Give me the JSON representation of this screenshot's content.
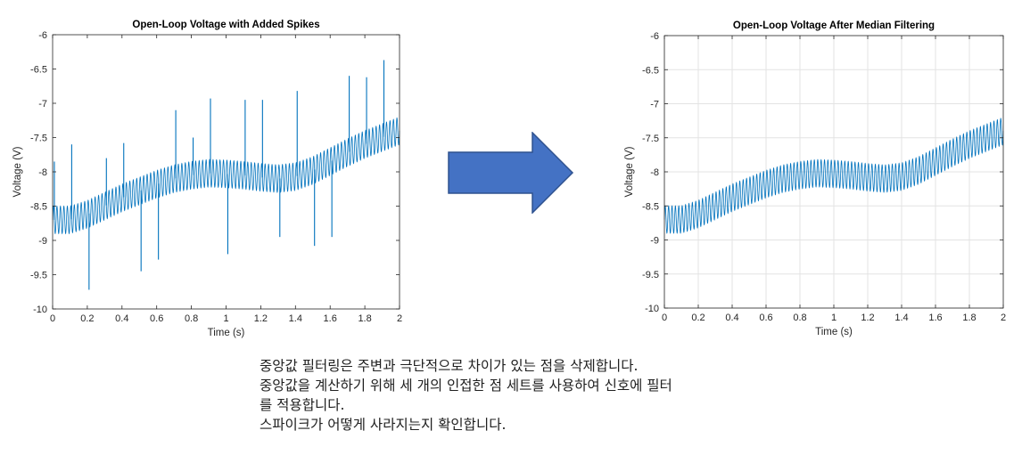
{
  "chart_data": [
    {
      "type": "line",
      "title": "Open-Loop Voltage with Added Spikes",
      "xlabel": "Time (s)",
      "ylabel": "Voltage (V)",
      "xlim": [
        0,
        2
      ],
      "ylim": [
        -10,
        -6
      ],
      "xticks": [
        "0",
        "0.2",
        "0.4",
        "0.6",
        "0.8",
        "1",
        "1.2",
        "1.4",
        "1.6",
        "1.8",
        "2"
      ],
      "yticks": [
        "-6",
        "-6.5",
        "-7",
        "-7.5",
        "-8",
        "-8.5",
        "-9",
        "-9.5",
        "-10"
      ],
      "grid": false,
      "line_color": "#0072BD",
      "trend": {
        "x": [
          0,
          0.1,
          0.2,
          0.3,
          0.4,
          0.5,
          0.6,
          0.7,
          0.8,
          0.9,
          1.0,
          1.1,
          1.2,
          1.3,
          1.4,
          1.5,
          1.6,
          1.7,
          1.8,
          1.9,
          2.0
        ],
        "y": [
          -8.7,
          -8.7,
          -8.62,
          -8.5,
          -8.38,
          -8.28,
          -8.18,
          -8.1,
          -8.05,
          -8.02,
          -8.03,
          -8.05,
          -8.08,
          -8.1,
          -8.07,
          -7.98,
          -7.85,
          -7.72,
          -7.6,
          -7.5,
          -7.4
        ]
      },
      "oscillation_amplitude": 0.2,
      "oscillation_period": 0.02,
      "spikes": [
        {
          "x": 0.01,
          "y": -7.85
        },
        {
          "x": 0.11,
          "y": -7.6
        },
        {
          "x": 0.21,
          "y": -9.72
        },
        {
          "x": 0.31,
          "y": -7.8
        },
        {
          "x": 0.41,
          "y": -7.58
        },
        {
          "x": 0.51,
          "y": -9.45
        },
        {
          "x": 0.61,
          "y": -9.28
        },
        {
          "x": 0.71,
          "y": -7.1
        },
        {
          "x": 0.81,
          "y": -7.5
        },
        {
          "x": 0.91,
          "y": -6.93
        },
        {
          "x": 1.01,
          "y": -9.2
        },
        {
          "x": 1.11,
          "y": -6.95
        },
        {
          "x": 1.21,
          "y": -6.95
        },
        {
          "x": 1.31,
          "y": -8.95
        },
        {
          "x": 1.41,
          "y": -6.82
        },
        {
          "x": 1.51,
          "y": -9.08
        },
        {
          "x": 1.61,
          "y": -8.95
        },
        {
          "x": 1.71,
          "y": -6.6
        },
        {
          "x": 1.81,
          "y": -6.62
        },
        {
          "x": 1.91,
          "y": -6.37
        }
      ]
    },
    {
      "type": "line",
      "title": "Open-Loop Voltage After Median Filtering",
      "xlabel": "Time (s)",
      "ylabel": "Voltage (V)",
      "xlim": [
        0,
        2
      ],
      "ylim": [
        -10,
        -6
      ],
      "xticks": [
        "0",
        "0.2",
        "0.4",
        "0.6",
        "0.8",
        "1",
        "1.2",
        "1.4",
        "1.6",
        "1.8",
        "2"
      ],
      "yticks": [
        "-6",
        "-6.5",
        "-7",
        "-7.5",
        "-8",
        "-8.5",
        "-9",
        "-9.5",
        "-10"
      ],
      "grid": true,
      "line_color": "#0072BD",
      "trend": {
        "x": [
          0,
          0.1,
          0.2,
          0.3,
          0.4,
          0.5,
          0.6,
          0.7,
          0.8,
          0.9,
          1.0,
          1.1,
          1.2,
          1.3,
          1.4,
          1.5,
          1.6,
          1.7,
          1.8,
          1.9,
          2.0
        ],
        "y": [
          -8.7,
          -8.7,
          -8.62,
          -8.5,
          -8.38,
          -8.28,
          -8.18,
          -8.1,
          -8.05,
          -8.02,
          -8.03,
          -8.05,
          -8.08,
          -8.1,
          -8.07,
          -7.98,
          -7.85,
          -7.72,
          -7.6,
          -7.5,
          -7.4
        ]
      },
      "oscillation_amplitude": 0.2,
      "oscillation_period": 0.02,
      "spikes": []
    }
  ],
  "arrow": {
    "color": "#4472C4",
    "border": "#2F528F",
    "icon": "right-arrow-icon"
  },
  "caption": {
    "line1": "중앙값 필터링은 주변과 극단적으로 차이가 있는 점을 삭제합니다.",
    "line2": "중앙값을 계산하기 위해 세 개의 인접한 점 세트를 사용하여 신호에 필터",
    "line3": "를 적용합니다.",
    "line4": "스파이크가 어떻게 사라지는지 확인합니다."
  }
}
